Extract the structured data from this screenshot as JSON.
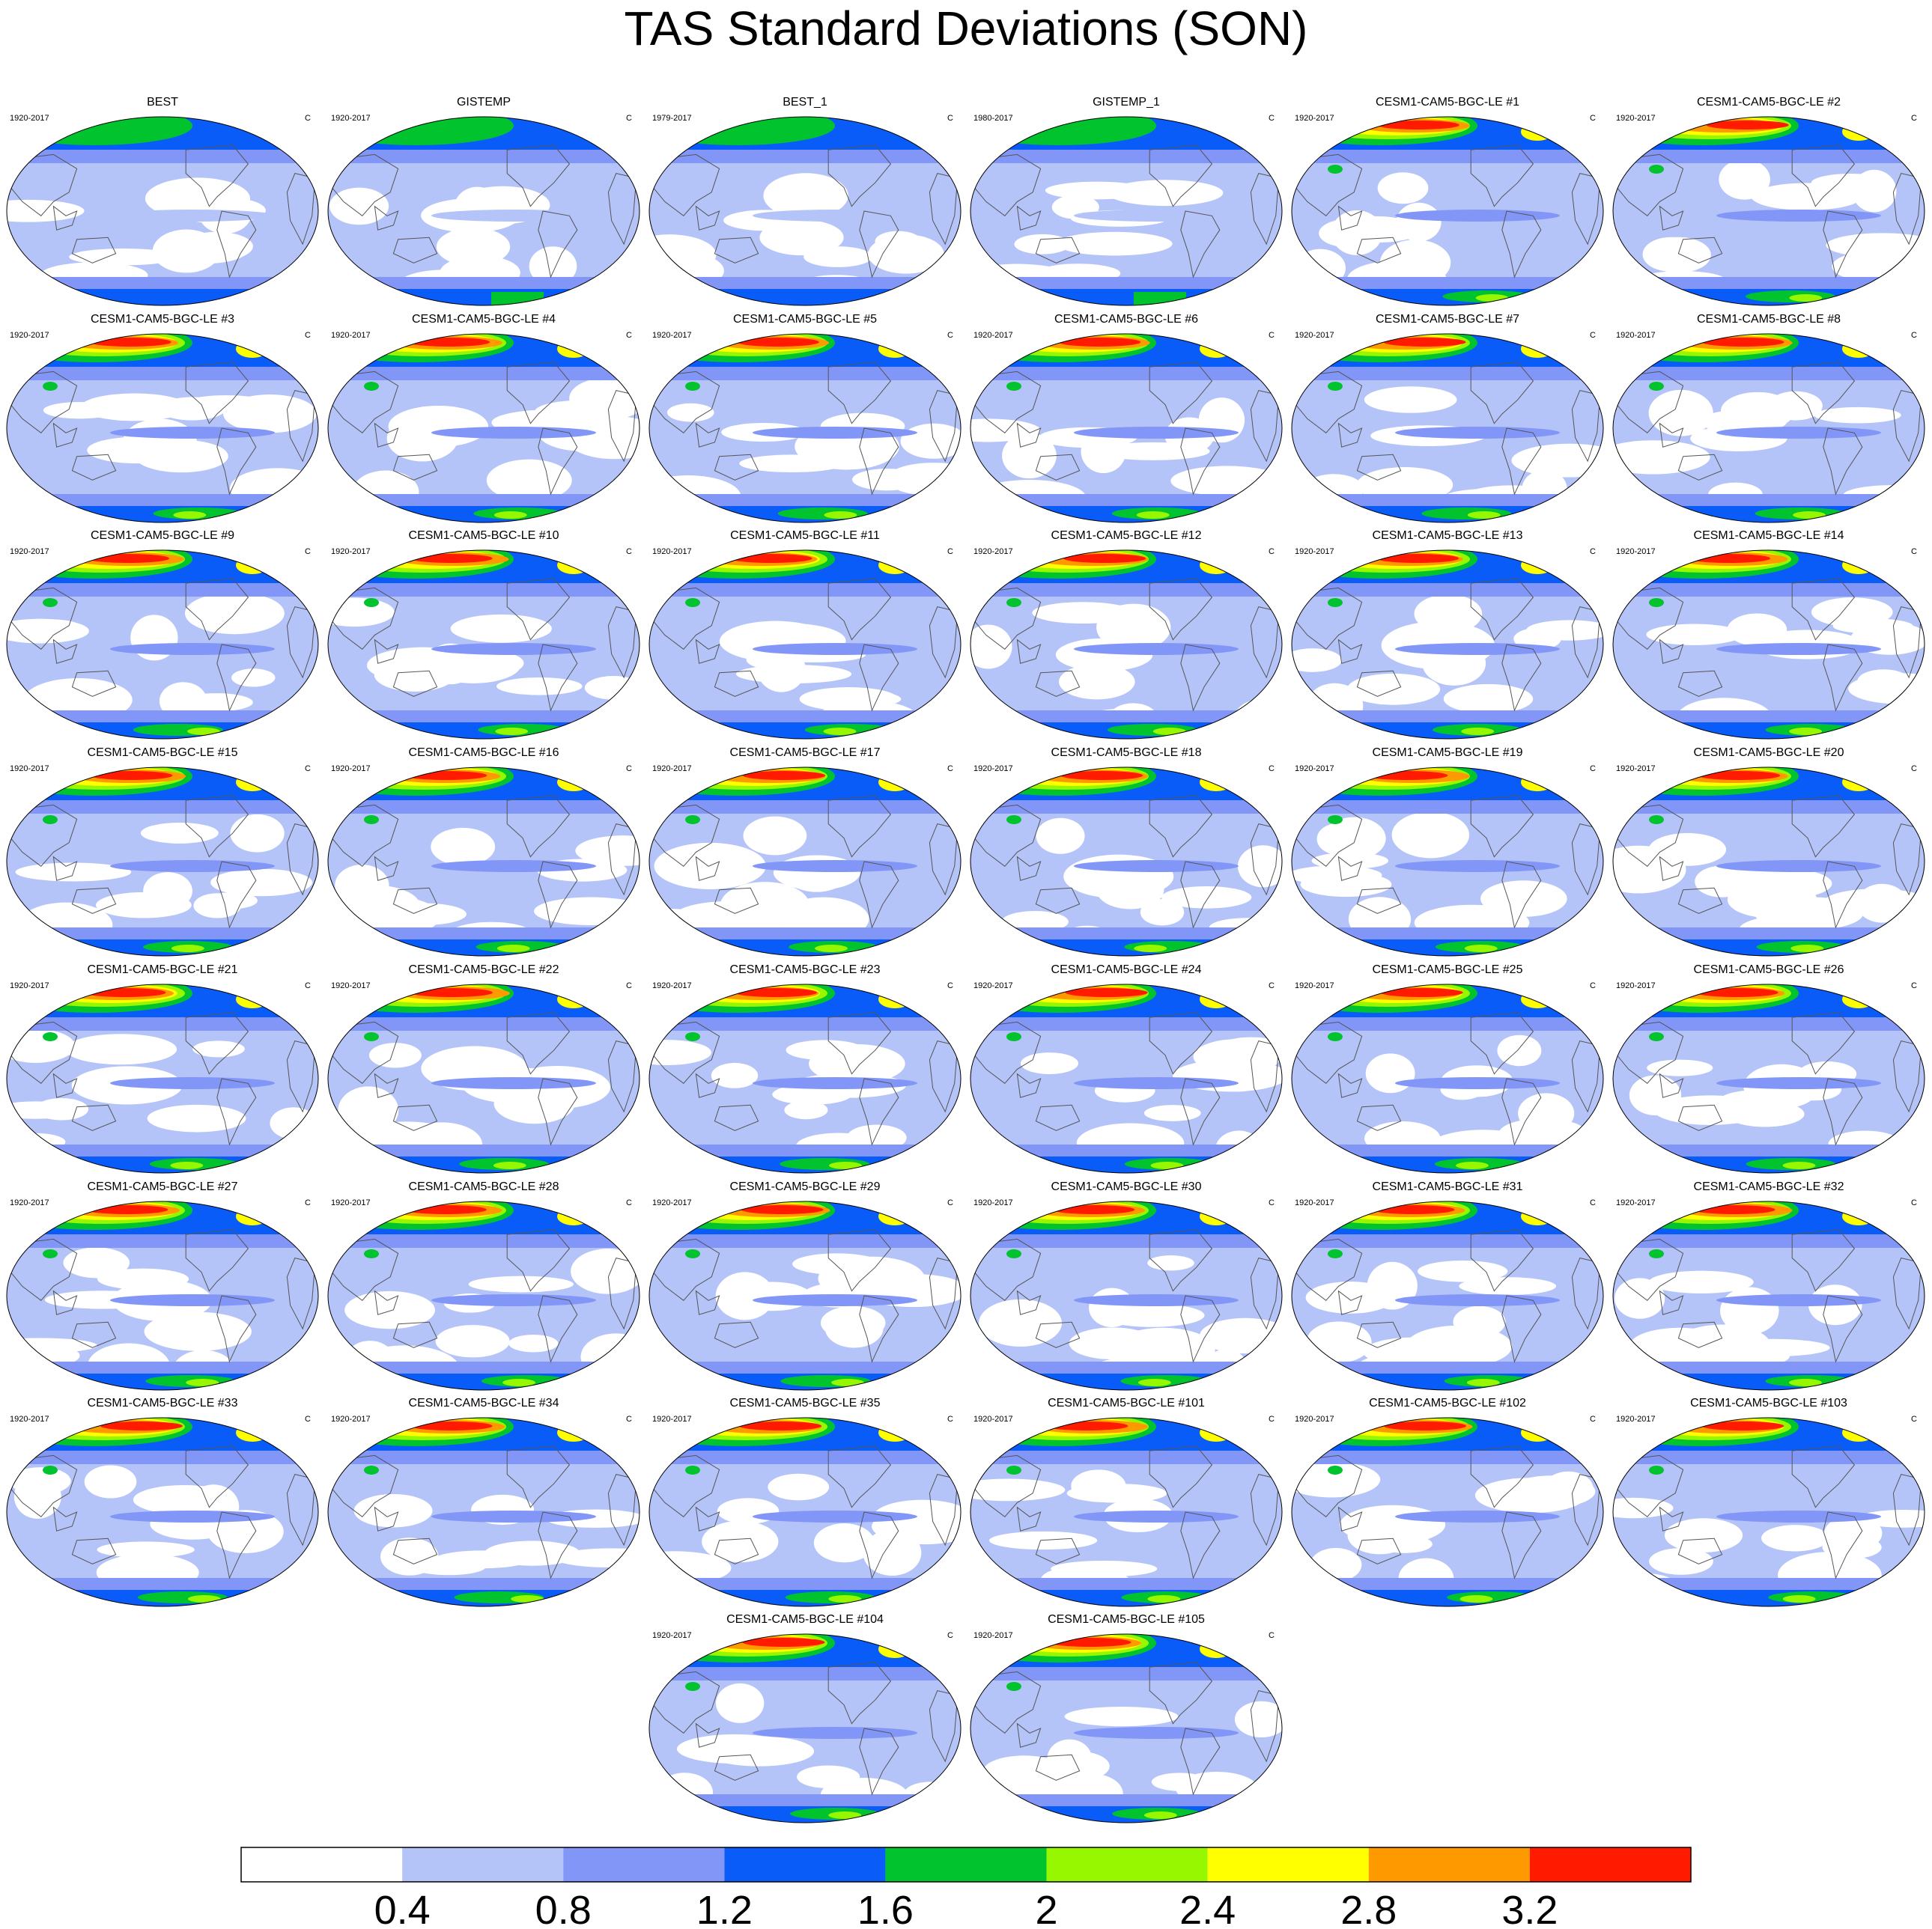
{
  "title": "TAS Standard Deviations (SON)",
  "panels": [
    {
      "label": "BEST",
      "period": "1920-2017",
      "unit": "C"
    },
    {
      "label": "GISTEMP",
      "period": "1920-2017",
      "unit": "C"
    },
    {
      "label": "BEST_1",
      "period": "1979-2017",
      "unit": "C"
    },
    {
      "label": "GISTEMP_1",
      "period": "1980-2017",
      "unit": "C"
    },
    {
      "label": "CESM1-CAM5-BGC-LE #1",
      "period": "1920-2017",
      "unit": "C"
    },
    {
      "label": "CESM1-CAM5-BGC-LE #2",
      "period": "1920-2017",
      "unit": "C"
    },
    {
      "label": "CESM1-CAM5-BGC-LE #3",
      "period": "1920-2017",
      "unit": "C"
    },
    {
      "label": "CESM1-CAM5-BGC-LE #4",
      "period": "1920-2017",
      "unit": "C"
    },
    {
      "label": "CESM1-CAM5-BGC-LE #5",
      "period": "1920-2017",
      "unit": "C"
    },
    {
      "label": "CESM1-CAM5-BGC-LE #6",
      "period": "1920-2017",
      "unit": "C"
    },
    {
      "label": "CESM1-CAM5-BGC-LE #7",
      "period": "1920-2017",
      "unit": "C"
    },
    {
      "label": "CESM1-CAM5-BGC-LE #8",
      "period": "1920-2017",
      "unit": "C"
    },
    {
      "label": "CESM1-CAM5-BGC-LE #9",
      "period": "1920-2017",
      "unit": "C"
    },
    {
      "label": "CESM1-CAM5-BGC-LE #10",
      "period": "1920-2017",
      "unit": "C"
    },
    {
      "label": "CESM1-CAM5-BGC-LE #11",
      "period": "1920-2017",
      "unit": "C"
    },
    {
      "label": "CESM1-CAM5-BGC-LE #12",
      "period": "1920-2017",
      "unit": "C"
    },
    {
      "label": "CESM1-CAM5-BGC-LE #13",
      "period": "1920-2017",
      "unit": "C"
    },
    {
      "label": "CESM1-CAM5-BGC-LE #14",
      "period": "1920-2017",
      "unit": "C"
    },
    {
      "label": "CESM1-CAM5-BGC-LE #15",
      "period": "1920-2017",
      "unit": "C"
    },
    {
      "label": "CESM1-CAM5-BGC-LE #16",
      "period": "1920-2017",
      "unit": "C"
    },
    {
      "label": "CESM1-CAM5-BGC-LE #17",
      "period": "1920-2017",
      "unit": "C"
    },
    {
      "label": "CESM1-CAM5-BGC-LE #18",
      "period": "1920-2017",
      "unit": "C"
    },
    {
      "label": "CESM1-CAM5-BGC-LE #19",
      "period": "1920-2017",
      "unit": "C"
    },
    {
      "label": "CESM1-CAM5-BGC-LE #20",
      "period": "1920-2017",
      "unit": "C"
    },
    {
      "label": "CESM1-CAM5-BGC-LE #21",
      "period": "1920-2017",
      "unit": "C"
    },
    {
      "label": "CESM1-CAM5-BGC-LE #22",
      "period": "1920-2017",
      "unit": "C"
    },
    {
      "label": "CESM1-CAM5-BGC-LE #23",
      "period": "1920-2017",
      "unit": "C"
    },
    {
      "label": "CESM1-CAM5-BGC-LE #24",
      "period": "1920-2017",
      "unit": "C"
    },
    {
      "label": "CESM1-CAM5-BGC-LE #25",
      "period": "1920-2017",
      "unit": "C"
    },
    {
      "label": "CESM1-CAM5-BGC-LE #26",
      "period": "1920-2017",
      "unit": "C"
    },
    {
      "label": "CESM1-CAM5-BGC-LE #27",
      "period": "1920-2017",
      "unit": "C"
    },
    {
      "label": "CESM1-CAM5-BGC-LE #28",
      "period": "1920-2017",
      "unit": "C"
    },
    {
      "label": "CESM1-CAM5-BGC-LE #29",
      "period": "1920-2017",
      "unit": "C"
    },
    {
      "label": "CESM1-CAM5-BGC-LE #30",
      "period": "1920-2017",
      "unit": "C"
    },
    {
      "label": "CESM1-CAM5-BGC-LE #31",
      "period": "1920-2017",
      "unit": "C"
    },
    {
      "label": "CESM1-CAM5-BGC-LE #32",
      "period": "1920-2017",
      "unit": "C"
    },
    {
      "label": "CESM1-CAM5-BGC-LE #33",
      "period": "1920-2017",
      "unit": "C"
    },
    {
      "label": "CESM1-CAM5-BGC-LE #34",
      "period": "1920-2017",
      "unit": "C"
    },
    {
      "label": "CESM1-CAM5-BGC-LE #35",
      "period": "1920-2017",
      "unit": "C"
    },
    {
      "label": "CESM1-CAM5-BGC-LE #101",
      "period": "1920-2017",
      "unit": "C"
    },
    {
      "label": "CESM1-CAM5-BGC-LE #102",
      "period": "1920-2017",
      "unit": "C"
    },
    {
      "label": "CESM1-CAM5-BGC-LE #103",
      "period": "1920-2017",
      "unit": "C"
    },
    {
      "label": "CESM1-CAM5-BGC-LE #104",
      "period": "1920-2017",
      "unit": "C"
    },
    {
      "label": "CESM1-CAM5-BGC-LE #105",
      "period": "1920-2017",
      "unit": "C"
    }
  ],
  "chart_data": {
    "type": "heatmap",
    "title": "TAS Standard Deviations (SON)",
    "projection": "robinson",
    "colorbar": {
      "orientation": "horizontal",
      "levels": [
        0.4,
        0.8,
        1.2,
        1.6,
        2,
        2.4,
        2.8,
        3.2
      ],
      "tick_labels": [
        "0.4",
        "0.8",
        "1.2",
        "1.6",
        "2",
        "2.4",
        "2.8",
        "3.2"
      ],
      "colors": [
        "#ffffff",
        "#b4c3f8",
        "#8296f8",
        "#0a5cf8",
        "#00c32d",
        "#96f700",
        "#ffff00",
        "#ff9900",
        "#ff1a00"
      ]
    }
  }
}
